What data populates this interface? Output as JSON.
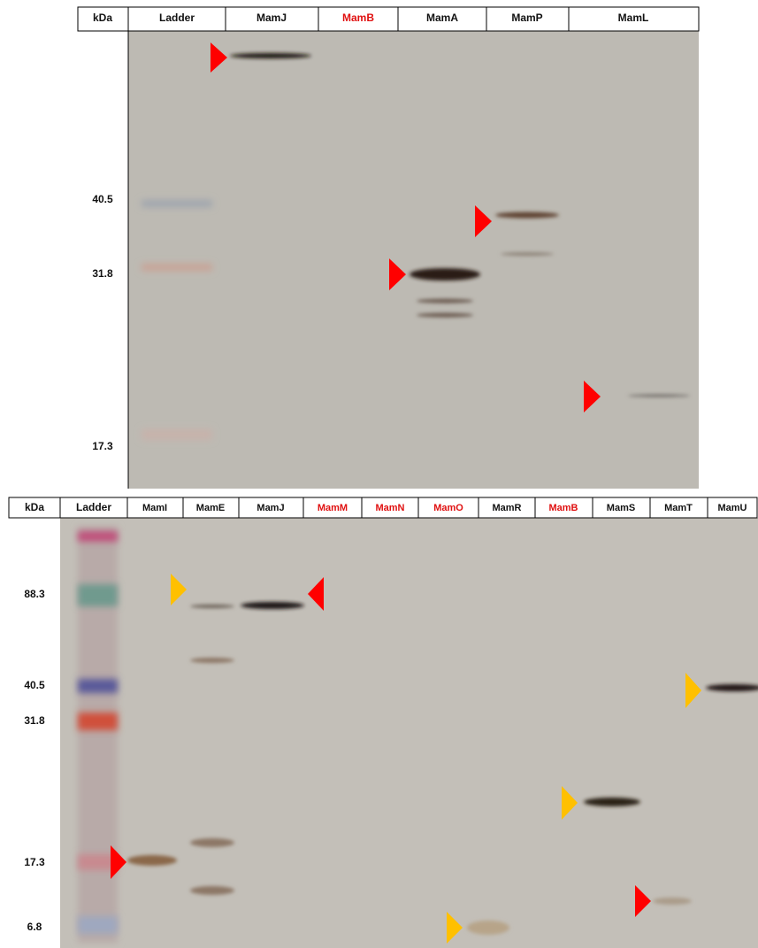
{
  "top_panel": {
    "header": [
      "kDa",
      "Ladder",
      "MamJ",
      "MamB",
      "MamA",
      "MamP",
      "MamL"
    ],
    "markers": [
      "40.5",
      "31.8",
      "17.3"
    ]
  },
  "bottom_panel": {
    "header": [
      "kDa",
      "Ladder",
      "MamI",
      "MamE",
      "MamJ",
      "MamM",
      "MamN",
      "MamO",
      "MamR",
      "MamB",
      "MamS",
      "MamT",
      "MamU"
    ],
    "markers": [
      "88.3",
      "40.5",
      "31.8",
      "17.3",
      "6.8"
    ]
  }
}
